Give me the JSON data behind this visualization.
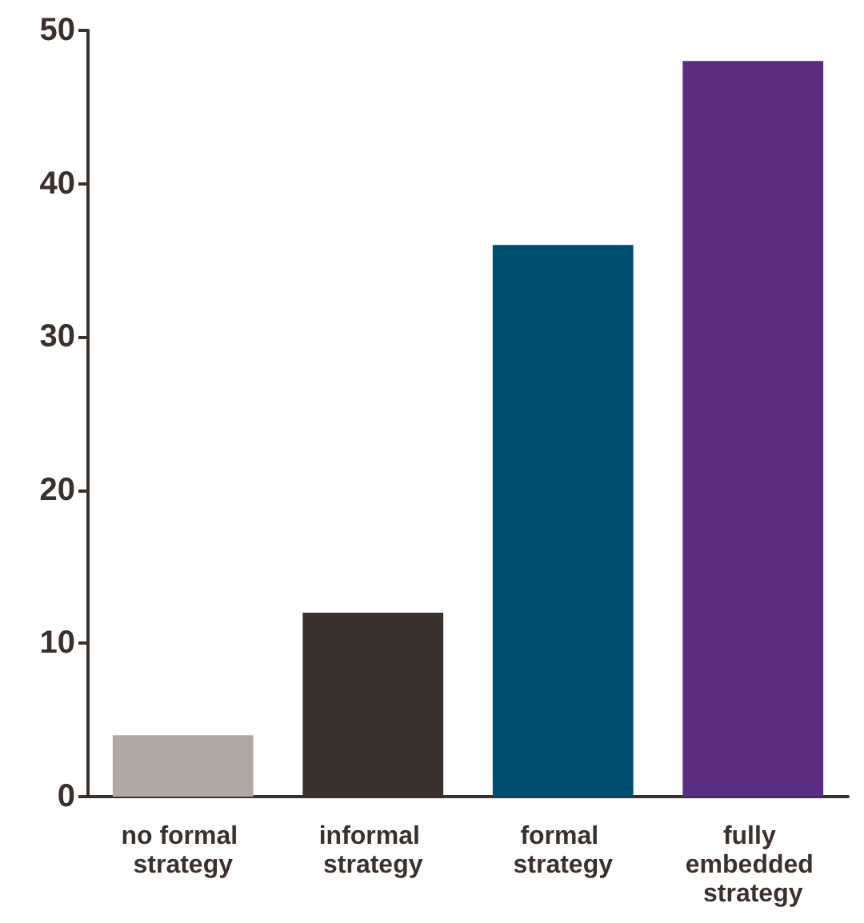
{
  "chart_data": {
    "type": "bar",
    "categories": [
      "no formal strategy",
      "informal strategy",
      "formal strategy",
      "fully embedded strategy"
    ],
    "values": [
      4,
      12,
      36,
      48
    ],
    "colors": [
      "#b0a8a3",
      "#3a302c",
      "#004e6f",
      "#5a2d82"
    ],
    "ylim": [
      0,
      50
    ],
    "yticks": [
      0,
      10,
      20,
      30,
      40,
      50
    ],
    "grid": false
  }
}
